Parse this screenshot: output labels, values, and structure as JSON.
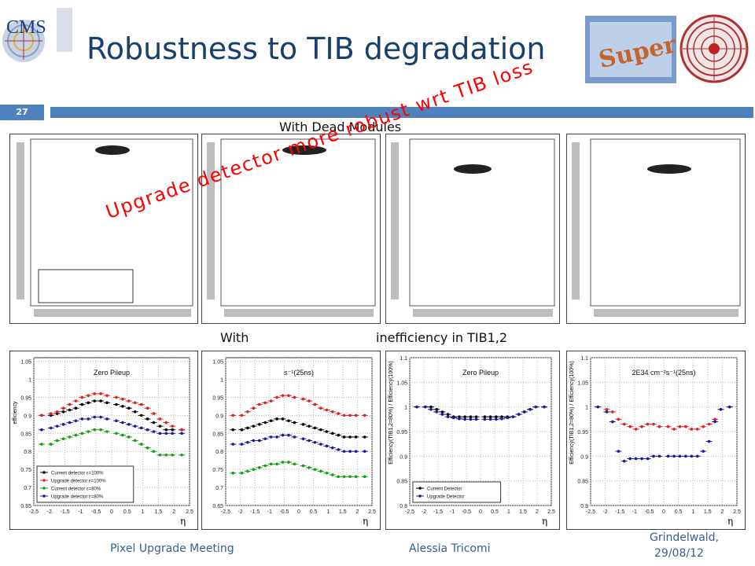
{
  "header": {
    "title": "Robustness to TIB degradation",
    "cms_logo_text": "CMS",
    "super_logo_text": "Super",
    "slide_number": "27"
  },
  "sections": {
    "top_label": "With Dead Modules",
    "bottom_label_visible": "With",
    "bottom_label_end": "inefficiency in TIB1,2"
  },
  "overlay_text": "Upgrade detector more robust wrt TIB loss",
  "footer": {
    "left": "Pixel Upgrade Meeting",
    "center": "Alessia Tricomi",
    "right_line1": "Grindelwald,",
    "right_line2": "29/08/12"
  },
  "colors": {
    "accent": "#4f81bd",
    "title": "#17406d",
    "overlay": "#ff0000",
    "current": "#000000",
    "upgrade": "#e02020",
    "current_degraded": "#10a010",
    "upgrade_degraded": "#1a1aa0"
  },
  "chart_data": [
    {
      "type": "scatter",
      "title": "Zero Pileup",
      "ylabel": "efficiency",
      "xlabel": "η",
      "xlim": [
        -2.5,
        2.5
      ],
      "ylim": [
        0.65,
        1.06
      ],
      "yticks": [
        0.65,
        0.7,
        0.75,
        0.8,
        0.85,
        0.9,
        0.95,
        1,
        1.05
      ],
      "yticklabels": [
        "0.65",
        "0.7",
        "0.75",
        "0.8",
        "0.85",
        "0.9",
        "0.95",
        "1",
        "1.05"
      ],
      "xticks": [
        -2.5,
        -2,
        -1.5,
        -1,
        -0.5,
        0,
        0.5,
        1,
        1.5,
        2,
        2.5
      ],
      "xticklabels": [
        "-2.5",
        "-2",
        "-1.5",
        "-1",
        "-0.5",
        "0",
        "0.5",
        "1",
        "1.5",
        "2",
        "2.5"
      ],
      "legend": [
        "Current detector ε=100%",
        "Upgrade detector ε=100%",
        "Current detector ε=80%",
        "Upgrade detector ε=80%"
      ],
      "legend_position": "bottom-left",
      "x": [
        -2.25,
        -1.95,
        -1.75,
        -1.55,
        -1.35,
        -1.15,
        -0.95,
        -0.75,
        -0.55,
        -0.35,
        -0.15,
        0.15,
        0.35,
        0.55,
        0.75,
        0.95,
        1.15,
        1.35,
        1.55,
        1.75,
        1.95,
        2.25
      ],
      "series": [
        {
          "color_key": "current",
          "values": [
            0.9,
            0.9,
            0.905,
            0.91,
            0.915,
            0.92,
            0.93,
            0.935,
            0.94,
            0.94,
            0.935,
            0.93,
            0.925,
            0.92,
            0.91,
            0.9,
            0.89,
            0.88,
            0.87,
            0.86,
            0.86,
            0.86
          ]
        },
        {
          "color_key": "upgrade",
          "values": [
            0.9,
            0.905,
            0.91,
            0.92,
            0.93,
            0.94,
            0.95,
            0.955,
            0.96,
            0.96,
            0.955,
            0.95,
            0.945,
            0.94,
            0.935,
            0.93,
            0.92,
            0.905,
            0.89,
            0.88,
            0.87,
            0.86
          ]
        },
        {
          "color_key": "current_degraded",
          "values": [
            0.82,
            0.82,
            0.83,
            0.835,
            0.84,
            0.845,
            0.85,
            0.855,
            0.86,
            0.86,
            0.855,
            0.85,
            0.845,
            0.84,
            0.83,
            0.82,
            0.81,
            0.8,
            0.79,
            0.79,
            0.79,
            0.79
          ]
        },
        {
          "color_key": "upgrade_degraded",
          "values": [
            0.86,
            0.865,
            0.87,
            0.875,
            0.88,
            0.885,
            0.89,
            0.89,
            0.895,
            0.895,
            0.89,
            0.885,
            0.88,
            0.875,
            0.87,
            0.865,
            0.86,
            0.855,
            0.85,
            0.85,
            0.85,
            0.85
          ]
        }
      ]
    },
    {
      "type": "scatter",
      "title": "s⁻¹(25ns)",
      "xlabel": "η",
      "xlim": [
        -2.5,
        2.5
      ],
      "ylim": [
        0.65,
        1.06
      ],
      "yticks": [
        0.65,
        0.7,
        0.75,
        0.8,
        0.85,
        0.9,
        0.95,
        1,
        1.05
      ],
      "yticklabels": [
        "0.65",
        "0.7",
        "0.75",
        "0.8",
        "0.85",
        "0.9",
        "0.95",
        "1",
        "1.05"
      ],
      "xticks": [
        -2.5,
        -2,
        -1.5,
        -1,
        -0.5,
        0,
        0.5,
        1,
        1.5,
        2,
        2.5
      ],
      "xticklabels": [
        "-2.5",
        "-2",
        "-1.5",
        "-1",
        "-0.5",
        "0",
        "0.5",
        "1",
        "1.5",
        "2",
        "2.5"
      ],
      "x": [
        -2.25,
        -1.95,
        -1.75,
        -1.55,
        -1.35,
        -1.15,
        -0.95,
        -0.75,
        -0.55,
        -0.35,
        -0.15,
        0.15,
        0.35,
        0.55,
        0.75,
        0.95,
        1.15,
        1.35,
        1.55,
        1.75,
        1.95,
        2.25
      ],
      "series": [
        {
          "color_key": "current",
          "values": [
            0.86,
            0.86,
            0.865,
            0.87,
            0.875,
            0.88,
            0.885,
            0.89,
            0.89,
            0.885,
            0.88,
            0.875,
            0.87,
            0.865,
            0.86,
            0.855,
            0.85,
            0.845,
            0.84,
            0.84,
            0.84,
            0.84
          ]
        },
        {
          "color_key": "upgrade",
          "values": [
            0.9,
            0.9,
            0.91,
            0.92,
            0.93,
            0.935,
            0.94,
            0.95,
            0.955,
            0.955,
            0.95,
            0.945,
            0.94,
            0.93,
            0.92,
            0.915,
            0.91,
            0.905,
            0.9,
            0.9,
            0.9,
            0.9
          ]
        },
        {
          "color_key": "current_degraded",
          "values": [
            0.74,
            0.74,
            0.745,
            0.75,
            0.755,
            0.76,
            0.765,
            0.765,
            0.77,
            0.77,
            0.765,
            0.76,
            0.755,
            0.75,
            0.745,
            0.74,
            0.735,
            0.73,
            0.73,
            0.73,
            0.73,
            0.73
          ]
        },
        {
          "color_key": "upgrade_degraded",
          "values": [
            0.82,
            0.82,
            0.825,
            0.83,
            0.83,
            0.835,
            0.84,
            0.84,
            0.845,
            0.845,
            0.84,
            0.835,
            0.83,
            0.825,
            0.82,
            0.815,
            0.81,
            0.805,
            0.8,
            0.8,
            0.8,
            0.8
          ]
        }
      ]
    },
    {
      "type": "scatter",
      "title": "Zero Pileup",
      "ylabel": "Efficiency(TIB1,2=80%) / Efficiency(100%)",
      "xlabel": "η",
      "xlim": [
        -2.5,
        2.5
      ],
      "ylim": [
        0.8,
        1.1
      ],
      "yticks": [
        0.8,
        0.85,
        0.9,
        0.95,
        1,
        1.05,
        1.1
      ],
      "yticklabels": [
        "0.8",
        "0.85",
        "0.9",
        "0.95",
        "1",
        "1.05",
        "1.1"
      ],
      "xticks": [
        -2.5,
        -2,
        -1.5,
        -1,
        -0.5,
        0,
        0.5,
        1,
        1.5,
        2,
        2.5
      ],
      "xticklabels": [
        "-2.5",
        "-2",
        "-1.5",
        "-1",
        "-0.5",
        "0",
        "0.5",
        "1",
        "1.5",
        "2",
        "2.5"
      ],
      "legend": [
        "Current Detector",
        "Upgrade Detector"
      ],
      "legend_position": "bottom-left",
      "x": [
        -2.25,
        -1.95,
        -1.75,
        -1.55,
        -1.35,
        -1.15,
        -0.95,
        -0.75,
        -0.55,
        -0.35,
        -0.15,
        0.15,
        0.35,
        0.55,
        0.75,
        0.95,
        1.15,
        1.35,
        1.55,
        1.75,
        1.95,
        2.25
      ],
      "series": [
        {
          "color_key": "current",
          "values": [
            1.0,
            1.0,
            1.0,
            0.995,
            0.99,
            0.985,
            0.98,
            0.98,
            0.98,
            0.98,
            0.98,
            0.98,
            0.98,
            0.98,
            0.98,
            0.98,
            0.98,
            0.985,
            0.99,
            0.995,
            1.0,
            1.0
          ]
        },
        {
          "color_key": "upgrade_degraded",
          "values": [
            1.0,
            1.0,
            0.995,
            0.99,
            0.985,
            0.98,
            0.978,
            0.976,
            0.975,
            0.975,
            0.975,
            0.975,
            0.975,
            0.975,
            0.976,
            0.978,
            0.98,
            0.985,
            0.99,
            0.995,
            1.0,
            1.0
          ]
        }
      ]
    },
    {
      "type": "scatter",
      "title": "2E34 cm⁻²s⁻¹(25ns)",
      "ylabel": "Efficiency(TIB1,2=80%) / Efficiency(100%)",
      "xlabel": "η",
      "xlim": [
        -2.5,
        2.5
      ],
      "ylim": [
        0.8,
        1.1
      ],
      "yticks": [
        0.8,
        0.85,
        0.9,
        0.95,
        1,
        1.05,
        1.1
      ],
      "yticklabels": [
        "0.8",
        "0.85",
        "0.9",
        "0.95",
        "1",
        "1.05",
        "1.1"
      ],
      "xticks": [
        -2.5,
        -2,
        -1.5,
        -1,
        -0.5,
        0,
        0.5,
        1,
        1.5,
        2,
        2.5
      ],
      "xticklabels": [
        "-2.5",
        "-2",
        "-1.5",
        "-1",
        "-0.5",
        "0",
        "0.5",
        "1",
        "1.5",
        "2",
        "2.5"
      ],
      "x": [
        -2.25,
        -1.95,
        -1.75,
        -1.55,
        -1.35,
        -1.15,
        -0.95,
        -0.75,
        -0.55,
        -0.35,
        -0.15,
        0.15,
        0.35,
        0.55,
        0.75,
        0.95,
        1.15,
        1.35,
        1.55,
        1.75,
        1.95,
        2.25
      ],
      "series": [
        {
          "color_key": "upgrade",
          "values": [
            1.0,
            0.995,
            0.99,
            0.975,
            0.965,
            0.96,
            0.955,
            0.96,
            0.965,
            0.965,
            0.96,
            0.96,
            0.955,
            0.96,
            0.96,
            0.955,
            0.955,
            0.96,
            0.965,
            0.975,
            0.995,
            1.0
          ]
        },
        {
          "color_key": "upgrade_degraded",
          "values": [
            1.0,
            0.99,
            0.97,
            0.91,
            0.89,
            0.895,
            0.895,
            0.895,
            0.895,
            0.9,
            0.9,
            0.9,
            0.9,
            0.9,
            0.9,
            0.9,
            0.9,
            0.91,
            0.93,
            0.97,
            0.995,
            1.0
          ]
        }
      ]
    }
  ]
}
